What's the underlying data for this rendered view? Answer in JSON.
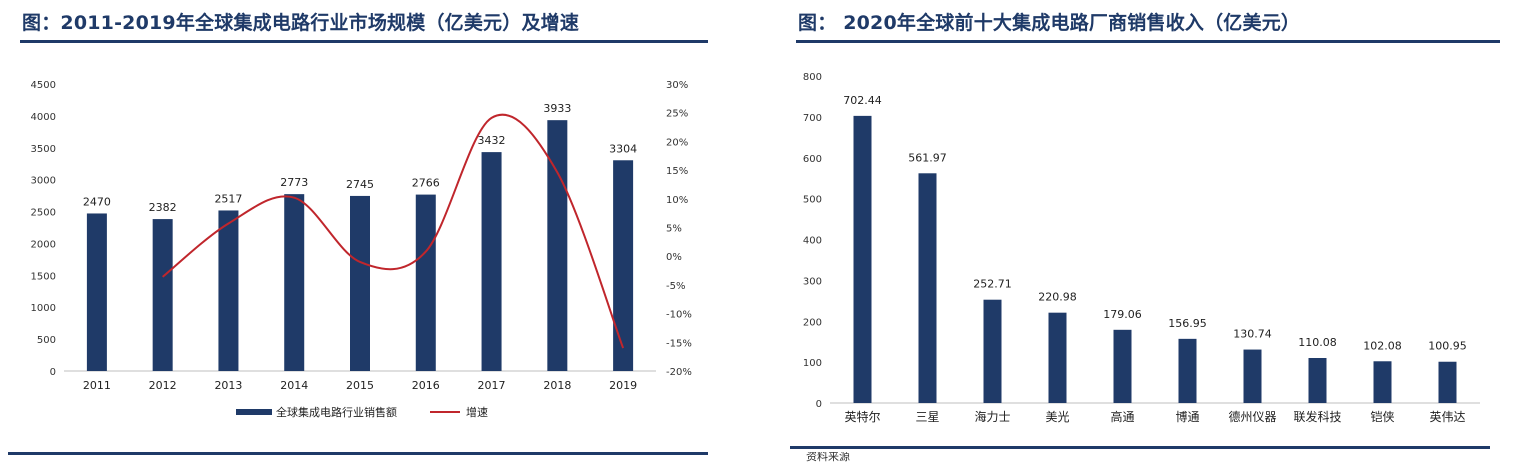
{
  "left_panel": {
    "title": "图：2011-2019年全球集成电路行业市场规模（亿美元）及增速"
  },
  "right_panel": {
    "title": "图：  2020年全球前十大集成电路厂商销售收入（亿美元）",
    "source_note": "资料来源"
  },
  "chart_data": [
    {
      "type": "bar",
      "categories": [
        "2011",
        "2012",
        "2013",
        "2014",
        "2015",
        "2016",
        "2017",
        "2018",
        "2019"
      ],
      "series": [
        {
          "name": "全球集成电路行业销售额",
          "type": "bar",
          "values": [
            2470,
            2382,
            2517,
            2773,
            2745,
            2766,
            3432,
            3933,
            3304
          ],
          "data_labels": [
            "2470",
            "2382",
            "2517",
            "2773",
            "2745",
            "2766",
            "3432",
            "3933",
            "3304"
          ],
          "color": "#1f3a68",
          "axis": "left"
        },
        {
          "name": "增速",
          "type": "line",
          "x": [
            "2012",
            "2013",
            "2014",
            "2015",
            "2016",
            "2017",
            "2018",
            "2019"
          ],
          "values": [
            -3.6,
            5.7,
            10.2,
            -1.0,
            0.8,
            24.1,
            14.6,
            -16.0
          ],
          "color": "#c0262c",
          "axis": "right"
        }
      ],
      "ylim": [
        0,
        4500
      ],
      "yticks": [
        "0",
        "500",
        "1000",
        "1500",
        "2000",
        "2500",
        "3000",
        "3500",
        "4000",
        "4500"
      ],
      "y2lim": [
        -20,
        30
      ],
      "y2ticks": [
        "-20%",
        "-15%",
        "-10%",
        "-5%",
        "0%",
        "5%",
        "10%",
        "15%",
        "20%",
        "25%",
        "30%"
      ],
      "grid": false,
      "legend": "bottom-center"
    },
    {
      "type": "bar",
      "categories": [
        "英特尔",
        "三星",
        "海力士",
        "美光",
        "高通",
        "博通",
        "德州仪器",
        "联发科技",
        "铠侠",
        "英伟达"
      ],
      "values": [
        702.44,
        561.97,
        252.71,
        220.98,
        179.06,
        156.95,
        130.74,
        110.08,
        102.08,
        100.95
      ],
      "data_labels": [
        "702.44",
        "561.97",
        "252.71",
        "220.98",
        "179.06",
        "156.95",
        "130.74",
        "110.08",
        "102.08",
        "100.95"
      ],
      "ylim": [
        0,
        800
      ],
      "yticks": [
        "0",
        "100",
        "200",
        "300",
        "400",
        "500",
        "600",
        "700",
        "800"
      ],
      "grid": false,
      "color": "#1f3a68"
    }
  ]
}
